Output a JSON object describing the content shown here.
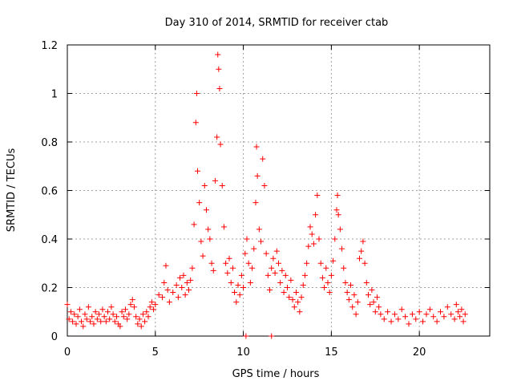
{
  "chart_data": {
    "type": "scatter",
    "title": "Day 310 of 2014, SRMTID for receiver ctab",
    "xlabel": "GPS time / hours",
    "ylabel": "SRMTID / TECUs",
    "xlim": [
      0,
      24
    ],
    "ylim": [
      0,
      1.2
    ],
    "x_ticks": [
      0,
      5,
      10,
      15,
      20
    ],
    "y_ticks": [
      0,
      0.2,
      0.4,
      0.6,
      0.8,
      1,
      1.2
    ],
    "x_tick_labels": [
      "0",
      "5",
      "10",
      "15",
      "20"
    ],
    "y_tick_labels": [
      "0",
      "0.2",
      "0.4",
      "0.6",
      "0.8",
      "1",
      "1.2"
    ],
    "grid": true,
    "marker": "+",
    "series": [
      {
        "name": "SRMTID",
        "color": "#ff0000",
        "points": [
          [
            0.0,
            0.13
          ],
          [
            0.1,
            0.07
          ],
          [
            0.2,
            0.1
          ],
          [
            0.3,
            0.06
          ],
          [
            0.4,
            0.09
          ],
          [
            0.5,
            0.05
          ],
          [
            0.6,
            0.08
          ],
          [
            0.7,
            0.11
          ],
          [
            0.8,
            0.06
          ],
          [
            0.9,
            0.04
          ],
          [
            1.0,
            0.09
          ],
          [
            1.1,
            0.07
          ],
          [
            1.2,
            0.12
          ],
          [
            1.3,
            0.06
          ],
          [
            1.4,
            0.08
          ],
          [
            1.5,
            0.05
          ],
          [
            1.6,
            0.1
          ],
          [
            1.7,
            0.07
          ],
          [
            1.8,
            0.09
          ],
          [
            1.9,
            0.06
          ],
          [
            2.0,
            0.11
          ],
          [
            2.1,
            0.08
          ],
          [
            2.2,
            0.06
          ],
          [
            2.3,
            0.1
          ],
          [
            2.4,
            0.07
          ],
          [
            2.5,
            0.12
          ],
          [
            2.6,
            0.09
          ],
          [
            2.7,
            0.06
          ],
          [
            2.8,
            0.08
          ],
          [
            2.9,
            0.05
          ],
          [
            3.0,
            0.04
          ],
          [
            3.1,
            0.1
          ],
          [
            3.2,
            0.08
          ],
          [
            3.3,
            0.11
          ],
          [
            3.4,
            0.07
          ],
          [
            3.5,
            0.09
          ],
          [
            3.6,
            0.13
          ],
          [
            3.7,
            0.15
          ],
          [
            3.8,
            0.12
          ],
          [
            3.9,
            0.08
          ],
          [
            4.0,
            0.05
          ],
          [
            4.1,
            0.07
          ],
          [
            4.2,
            0.04
          ],
          [
            4.3,
            0.09
          ],
          [
            4.4,
            0.06
          ],
          [
            4.5,
            0.1
          ],
          [
            4.6,
            0.08
          ],
          [
            4.7,
            0.12
          ],
          [
            4.8,
            0.14
          ],
          [
            4.9,
            0.11
          ],
          [
            5.0,
            0.13
          ],
          [
            5.2,
            0.17
          ],
          [
            5.4,
            0.16
          ],
          [
            5.5,
            0.22
          ],
          [
            5.6,
            0.29
          ],
          [
            5.7,
            0.19
          ],
          [
            5.8,
            0.14
          ],
          [
            6.0,
            0.18
          ],
          [
            6.2,
            0.21
          ],
          [
            6.3,
            0.16
          ],
          [
            6.4,
            0.24
          ],
          [
            6.5,
            0.2
          ],
          [
            6.6,
            0.25
          ],
          [
            6.7,
            0.17
          ],
          [
            6.8,
            0.22
          ],
          [
            6.9,
            0.19
          ],
          [
            7.0,
            0.23
          ],
          [
            7.1,
            0.28
          ],
          [
            7.2,
            0.46
          ],
          [
            7.3,
            0.88
          ],
          [
            7.35,
            1.0
          ],
          [
            7.4,
            0.68
          ],
          [
            7.5,
            0.55
          ],
          [
            7.6,
            0.39
          ],
          [
            7.7,
            0.33
          ],
          [
            7.8,
            0.62
          ],
          [
            7.9,
            0.52
          ],
          [
            8.0,
            0.44
          ],
          [
            8.1,
            0.4
          ],
          [
            8.2,
            0.3
          ],
          [
            8.3,
            0.27
          ],
          [
            8.4,
            0.64
          ],
          [
            8.5,
            0.82
          ],
          [
            8.55,
            1.16
          ],
          [
            8.6,
            1.1
          ],
          [
            8.65,
            1.02
          ],
          [
            8.7,
            0.79
          ],
          [
            8.8,
            0.62
          ],
          [
            8.9,
            0.45
          ],
          [
            9.0,
            0.3
          ],
          [
            9.1,
            0.26
          ],
          [
            9.2,
            0.32
          ],
          [
            9.3,
            0.22
          ],
          [
            9.4,
            0.28
          ],
          [
            9.5,
            0.18
          ],
          [
            9.6,
            0.14
          ],
          [
            9.7,
            0.21
          ],
          [
            9.8,
            0.17
          ],
          [
            9.9,
            0.25
          ],
          [
            10.0,
            0.2
          ],
          [
            10.1,
            0.34
          ],
          [
            10.2,
            0.4
          ],
          [
            10.3,
            0.3
          ],
          [
            10.4,
            0.22
          ],
          [
            10.5,
            0.28
          ],
          [
            10.6,
            0.36
          ],
          [
            10.7,
            0.55
          ],
          [
            10.75,
            0.78
          ],
          [
            10.8,
            0.66
          ],
          [
            10.9,
            0.44
          ],
          [
            11.0,
            0.39
          ],
          [
            11.1,
            0.73
          ],
          [
            11.2,
            0.62
          ],
          [
            11.3,
            0.34
          ],
          [
            11.4,
            0.25
          ],
          [
            11.5,
            0.19
          ],
          [
            11.6,
            0.28
          ],
          [
            11.7,
            0.32
          ],
          [
            11.8,
            0.26
          ],
          [
            11.9,
            0.35
          ],
          [
            12.0,
            0.3
          ],
          [
            12.1,
            0.22
          ],
          [
            12.2,
            0.27
          ],
          [
            12.3,
            0.18
          ],
          [
            12.4,
            0.25
          ],
          [
            12.5,
            0.2
          ],
          [
            12.6,
            0.16
          ],
          [
            12.7,
            0.23
          ],
          [
            12.8,
            0.15
          ],
          [
            12.9,
            0.12
          ],
          [
            13.0,
            0.18
          ],
          [
            13.1,
            0.14
          ],
          [
            13.2,
            0.1
          ],
          [
            13.3,
            0.16
          ],
          [
            13.4,
            0.21
          ],
          [
            13.5,
            0.25
          ],
          [
            13.6,
            0.3
          ],
          [
            13.7,
            0.37
          ],
          [
            13.8,
            0.45
          ],
          [
            13.9,
            0.42
          ],
          [
            14.0,
            0.38
          ],
          [
            14.1,
            0.5
          ],
          [
            14.2,
            0.58
          ],
          [
            14.3,
            0.4
          ],
          [
            14.4,
            0.3
          ],
          [
            14.5,
            0.24
          ],
          [
            14.6,
            0.2
          ],
          [
            14.7,
            0.28
          ],
          [
            14.8,
            0.22
          ],
          [
            14.9,
            0.18
          ],
          [
            15.0,
            0.25
          ],
          [
            15.1,
            0.31
          ],
          [
            15.2,
            0.4
          ],
          [
            15.3,
            0.52
          ],
          [
            15.35,
            0.58
          ],
          [
            15.4,
            0.5
          ],
          [
            15.5,
            0.44
          ],
          [
            15.6,
            0.36
          ],
          [
            15.7,
            0.28
          ],
          [
            15.8,
            0.22
          ],
          [
            15.9,
            0.18
          ],
          [
            16.0,
            0.15
          ],
          [
            16.1,
            0.21
          ],
          [
            16.2,
            0.12
          ],
          [
            16.3,
            0.17
          ],
          [
            16.4,
            0.09
          ],
          [
            16.5,
            0.14
          ],
          [
            16.6,
            0.32
          ],
          [
            16.7,
            0.35
          ],
          [
            16.8,
            0.39
          ],
          [
            16.9,
            0.3
          ],
          [
            17.0,
            0.22
          ],
          [
            17.1,
            0.17
          ],
          [
            17.2,
            0.13
          ],
          [
            17.3,
            0.19
          ],
          [
            17.4,
            0.14
          ],
          [
            17.5,
            0.1
          ],
          [
            17.6,
            0.16
          ],
          [
            17.7,
            0.12
          ],
          [
            17.8,
            0.09
          ],
          [
            18.0,
            0.07
          ],
          [
            18.2,
            0.1
          ],
          [
            18.4,
            0.06
          ],
          [
            18.6,
            0.09
          ],
          [
            18.8,
            0.07
          ],
          [
            19.0,
            0.11
          ],
          [
            19.2,
            0.08
          ],
          [
            19.4,
            0.05
          ],
          [
            19.6,
            0.09
          ],
          [
            19.8,
            0.07
          ],
          [
            20.0,
            0.1
          ],
          [
            20.2,
            0.06
          ],
          [
            20.4,
            0.09
          ],
          [
            20.6,
            0.11
          ],
          [
            20.8,
            0.08
          ],
          [
            21.0,
            0.06
          ],
          [
            21.2,
            0.1
          ],
          [
            21.4,
            0.08
          ],
          [
            21.6,
            0.12
          ],
          [
            21.8,
            0.09
          ],
          [
            22.0,
            0.07
          ],
          [
            22.1,
            0.13
          ],
          [
            22.2,
            0.1
          ],
          [
            22.3,
            0.08
          ],
          [
            22.4,
            0.11
          ],
          [
            22.5,
            0.06
          ],
          [
            22.6,
            0.09
          ],
          [
            10.15,
            0.0
          ],
          [
            11.6,
            0.0
          ]
        ]
      }
    ]
  }
}
